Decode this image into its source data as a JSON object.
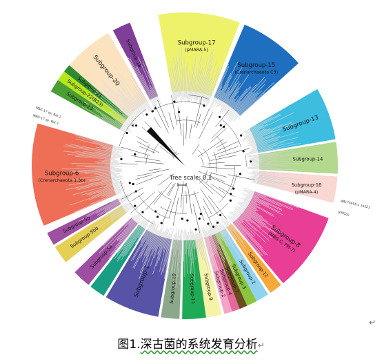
{
  "figure": {
    "caption_prefix": "图1.",
    "caption_body": "深古菌的系统发育分析",
    "caption_mark": "↵",
    "return_mark": "↵",
    "scale_label": "Tree scale: 0.1"
  },
  "subgroups": [
    {
      "id": "sg17",
      "label": "Subgroup-17",
      "sub": "(pMARA-5)",
      "color": "#EDF26A",
      "a0": -100,
      "a1": -69
    },
    {
      "id": "sg15",
      "label": "Subgroup-15",
      "sub": "(Crenarchaeota C3)",
      "color": "#1E6FBF",
      "a0": -67,
      "a1": -42
    },
    {
      "id": "sg13",
      "label": "Subgroup-13",
      "sub": "",
      "color": "#3DBDE0",
      "a0": -30,
      "a1": -10
    },
    {
      "id": "sg14",
      "label": "Subgroup-14",
      "sub": "",
      "color": "#B3D98E",
      "a0": -9,
      "a1": 3
    },
    {
      "id": "sg16",
      "label": "Subgroup-16",
      "sub": "(pMARA-4)",
      "color": "#F9D7D3",
      "a0": 4,
      "a1": 14
    },
    {
      "id": "sg8",
      "label": "Subgroup-8",
      "sub": "(MBG-C; PM-7)",
      "color": "#E83E96",
      "a0": 20,
      "a1": 50
    },
    {
      "id": "sg12",
      "label": "Subgroup-12",
      "sub": "",
      "color": "#F7A93C",
      "a0": 51,
      "a1": 56
    },
    {
      "id": "sg2",
      "label": "Subgroup-2",
      "sub": "",
      "color": "#8FD3EE",
      "a0": 57,
      "a1": 62
    },
    {
      "id": "sg3",
      "label": "Subgroup-3",
      "sub": "",
      "color": "#8BC53F",
      "a0": 62,
      "a1": 66
    },
    {
      "id": "sg7",
      "label": "Subgroup-7",
      "sub": "",
      "color": "#6B4C1E",
      "a0": 66,
      "a1": 69
    },
    {
      "id": "sg4",
      "label": "Subgroup-4",
      "sub": "",
      "color": "#E46A9B",
      "a0": 69,
      "a1": 72
    },
    {
      "id": "sg2b",
      "label": "Subgroup-2",
      "sub": "",
      "color": "#F5A3C7",
      "a0": 72,
      "a1": 75
    },
    {
      "id": "sg9",
      "label": "Subgroup-9",
      "sub": "",
      "color": "#F6F2A8",
      "a0": 76,
      "a1": 82
    },
    {
      "id": "sg11",
      "label": "Subgroup-11",
      "sub": "",
      "color": "#1FAA55",
      "a0": 82,
      "a1": 91
    },
    {
      "id": "sg10",
      "label": "Subgroup-10",
      "sub": "",
      "color": "#8BA88B",
      "a0": 92,
      "a1": 99
    },
    {
      "id": "sg1",
      "label": "Subgroup-1",
      "sub": "",
      "color": "#5753A6",
      "a0": 100,
      "a1": 121
    },
    {
      "id": "sg5c",
      "label": "",
      "sub": "",
      "color": "#1A9D85",
      "a0": 122,
      "a1": 128
    },
    {
      "id": "sg5a",
      "label": "Subgroup-5a",
      "sub": "",
      "color": "#9E4FA1",
      "a0": 129,
      "a1": 136
    },
    {
      "id": "sg5bb",
      "label": "Subgroup-5bb",
      "sub": "",
      "color": "#E5CF55",
      "a0": 141,
      "a1": 148
    },
    {
      "id": "sg5b",
      "label": "Subgroup-5b",
      "sub": "",
      "color": "#9E4FA1",
      "a0": 149,
      "a1": 154
    },
    {
      "id": "sg6",
      "label": "Subgroup-6",
      "sub": "(Crenarchaeota 1.3b)",
      "color": "#EF6E56",
      "a0": 157,
      "a1": 196
    },
    {
      "id": "sg23",
      "label": "Subgroup-23",
      "sub": "",
      "color": "#4A9E32",
      "a0": 209,
      "a1": 214
    },
    {
      "id": "sg22",
      "label": "Subgroup-22(B23)",
      "sub": "",
      "color": "#B5E61D",
      "a0": 214,
      "a1": 218
    },
    {
      "id": "sg21",
      "label": "Subgroup-21",
      "sub": "",
      "color": "#2E8B2E",
      "a0": 218,
      "a1": 221
    },
    {
      "id": "sg20",
      "label": "Subgroup-20",
      "sub": "",
      "color": "#FCE3C0",
      "a0": 221,
      "a1": 240
    },
    {
      "id": "sg18",
      "label": "Subgroup-18",
      "sub": "",
      "color": "#7F3F98",
      "a0": 242,
      "a1": 249
    }
  ],
  "outer_labels": [
    {
      "text": "AB175605.1 14221",
      "a": 13
    },
    {
      "text": "(pMCG)",
      "a": 17
    },
    {
      "text": "MBG-17 sp. Bat.1",
      "a": 198
    },
    {
      "text": "MBG-17 sp. Bat.2",
      "a": 201
    }
  ]
}
